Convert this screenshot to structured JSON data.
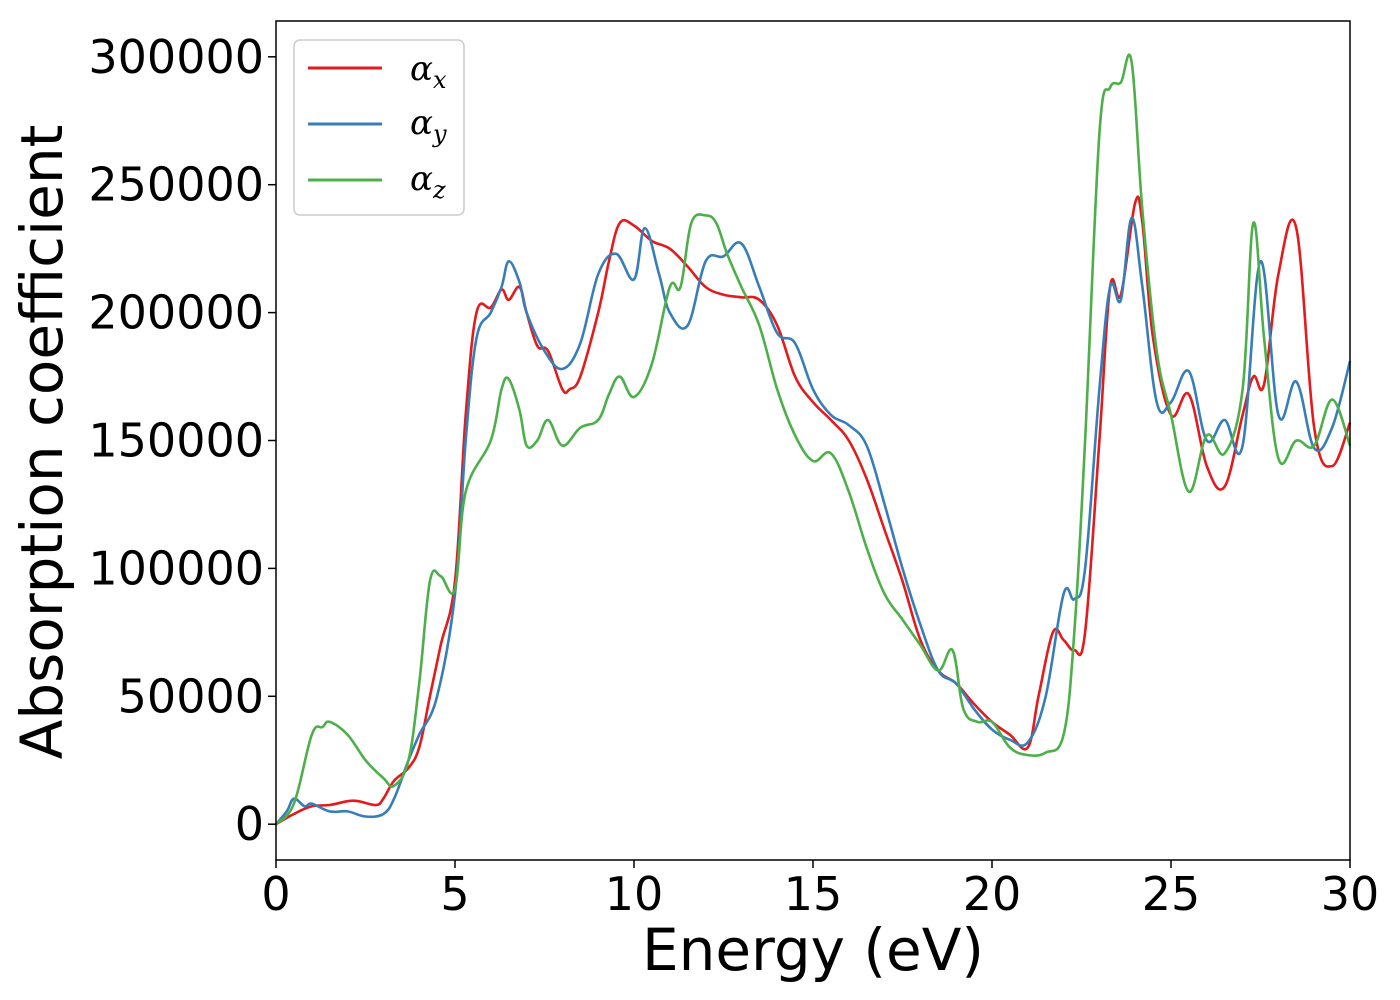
{
  "chart_data": {
    "type": "line",
    "xlabel": "Energy (eV)",
    "ylabel": "Absorption coefficient",
    "xlim": [
      0,
      30
    ],
    "ylim": [
      -14000,
      314000
    ],
    "xticks": [
      0,
      5,
      10,
      15,
      20,
      25,
      30
    ],
    "yticks": [
      0,
      50000,
      100000,
      150000,
      200000,
      250000,
      300000
    ],
    "grid": false,
    "legend_position": "top-left",
    "series": [
      {
        "name": "α",
        "subscript": "x",
        "color": "#e41a1c",
        "x": [
          0,
          0.5,
          1,
          1.5,
          2,
          2.3,
          2.8,
          3,
          3.3,
          3.7,
          4,
          4.3,
          4.6,
          5,
          5.3,
          5.6,
          6,
          6.3,
          6.5,
          6.8,
          7,
          7.3,
          7.6,
          8,
          8.2,
          8.5,
          9,
          9.3,
          9.6,
          10,
          10.5,
          11,
          11.5,
          12,
          12.5,
          13,
          13.5,
          14,
          14.5,
          15,
          15.5,
          16,
          16.5,
          17,
          17.5,
          18,
          18.5,
          19,
          19.5,
          20,
          20.5,
          21,
          21.3,
          21.7,
          22,
          22.3,
          22.6,
          23,
          23.3,
          23.6,
          24,
          24.2,
          24.5,
          25,
          25.5,
          26,
          26.5,
          27,
          27.3,
          27.6,
          28,
          28.5,
          29,
          29.5,
          30
        ],
        "y": [
          0,
          4000,
          7000,
          7500,
          9000,
          9000,
          7500,
          10000,
          17000,
          22000,
          30000,
          50000,
          70000,
          95000,
          160000,
          200000,
          202000,
          209000,
          205000,
          210000,
          200000,
          187000,
          185000,
          170000,
          170000,
          175000,
          200000,
          220000,
          235000,
          234000,
          228000,
          225000,
          218000,
          210000,
          207000,
          206000,
          205000,
          195000,
          175000,
          165000,
          158000,
          150000,
          135000,
          115000,
          95000,
          72000,
          60000,
          55000,
          47000,
          40000,
          35000,
          30000,
          50000,
          75000,
          72000,
          68000,
          75000,
          150000,
          210000,
          207000,
          243000,
          235000,
          190000,
          160000,
          168000,
          140000,
          132000,
          160000,
          175000,
          172000,
          215000,
          233000,
          155000,
          140000,
          157000
        ]
      },
      {
        "name": "α",
        "subscript": "y",
        "color": "#377eb8",
        "x": [
          0,
          0.3,
          0.5,
          0.8,
          1,
          1.5,
          2,
          2.5,
          3,
          3.3,
          3.7,
          4,
          4.5,
          5,
          5.3,
          5.6,
          6,
          6.3,
          6.5,
          6.8,
          7,
          7.5,
          8,
          8.5,
          9,
          9.5,
          10,
          10.3,
          10.7,
          11,
          11.5,
          12,
          12.5,
          13,
          13.5,
          14,
          14.5,
          15,
          15.5,
          16,
          16.5,
          17,
          17.5,
          18,
          18.5,
          19,
          19.5,
          20,
          20.5,
          21,
          21.5,
          22,
          22.3,
          22.6,
          23,
          23.3,
          23.6,
          23.9,
          24.2,
          24.6,
          25,
          25.5,
          26,
          26.5,
          27,
          27.5,
          28,
          28.5,
          29,
          29.5,
          30
        ],
        "y": [
          0,
          5000,
          10000,
          7000,
          8000,
          5000,
          5000,
          3000,
          4000,
          10000,
          25000,
          35000,
          50000,
          90000,
          150000,
          190000,
          200000,
          210000,
          220000,
          212000,
          200000,
          185000,
          178000,
          188000,
          215000,
          223000,
          213000,
          233000,
          215000,
          200000,
          195000,
          220000,
          222000,
          227000,
          210000,
          192000,
          188000,
          170000,
          160000,
          156000,
          148000,
          125000,
          100000,
          78000,
          60000,
          55000,
          45000,
          37000,
          33000,
          32000,
          50000,
          90000,
          88000,
          100000,
          170000,
          210000,
          205000,
          237000,
          210000,
          165000,
          165000,
          177000,
          150000,
          158000,
          148000,
          220000,
          160000,
          173000,
          147000,
          155000,
          181000
        ]
      },
      {
        "name": "α",
        "subscript": "z",
        "color": "#4daf4a",
        "x": [
          0,
          0.5,
          1,
          1.3,
          1.5,
          2,
          2.5,
          3,
          3.3,
          3.7,
          4,
          4.3,
          4.6,
          5,
          5.3,
          6,
          6.3,
          6.5,
          6.8,
          7,
          7.3,
          7.6,
          8,
          8.5,
          9,
          9.3,
          9.6,
          10,
          10.5,
          11,
          11.3,
          11.6,
          12,
          12.3,
          12.6,
          13,
          13.5,
          14,
          14.5,
          15,
          15.5,
          16,
          16.5,
          17,
          17.5,
          18,
          18.5,
          18.9,
          19.2,
          19.6,
          20,
          20.5,
          21,
          21.5,
          22,
          22.3,
          22.6,
          23,
          23.3,
          23.6,
          23.9,
          24.2,
          24.6,
          25,
          25.5,
          26,
          26.5,
          27,
          27.3,
          27.6,
          28,
          28.5,
          29,
          29.5,
          30
        ],
        "y": [
          0,
          8000,
          35000,
          38000,
          40000,
          35000,
          25000,
          18000,
          15000,
          25000,
          55000,
          95000,
          97000,
          92000,
          130000,
          150000,
          170000,
          174000,
          162000,
          148000,
          150000,
          158000,
          148000,
          155000,
          158000,
          168000,
          175000,
          167000,
          180000,
          210000,
          210000,
          235000,
          238000,
          235000,
          223000,
          210000,
          195000,
          170000,
          152000,
          142000,
          145000,
          130000,
          108000,
          90000,
          80000,
          70000,
          60000,
          68000,
          45000,
          40000,
          40000,
          30000,
          27000,
          28000,
          35000,
          75000,
          150000,
          270000,
          288000,
          290000,
          298000,
          240000,
          185000,
          160000,
          130000,
          152000,
          145000,
          170000,
          235000,
          190000,
          143000,
          150000,
          148000,
          166000,
          148000
        ]
      }
    ]
  }
}
